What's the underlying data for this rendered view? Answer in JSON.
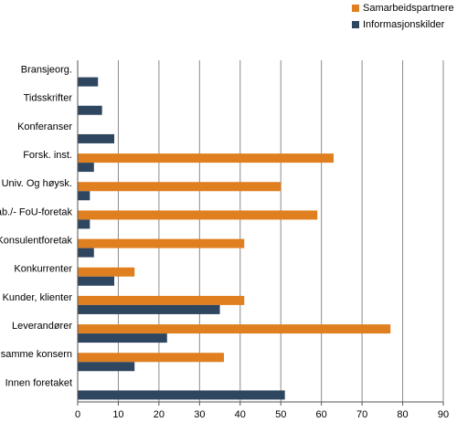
{
  "chart_data": {
    "type": "bar",
    "orientation": "horizontal",
    "title": "",
    "xlabel": "",
    "ylabel": "",
    "xlim": [
      0,
      90
    ],
    "xticks": [
      0,
      10,
      20,
      30,
      40,
      50,
      60,
      70,
      80,
      90
    ],
    "grid": true,
    "legend_position": "top-right",
    "categories": [
      "Bransjeorg.",
      "Tidsskrifter",
      "Konferanser",
      "Forsk. inst.",
      "Univ. Og høysk.",
      "Lab./- FoU-foretak",
      "Konsulentforetak",
      "Konkurrenter",
      "Kunder, klienter",
      "Leverandører",
      "I samme konsern",
      "Innen foretaket"
    ],
    "series": [
      {
        "name": "Samarbeidspartnere",
        "color": "#E07F1F",
        "values": [
          0,
          0,
          0,
          63,
          50,
          59,
          41,
          14,
          41,
          77,
          36,
          0
        ]
      },
      {
        "name": "Informasjonskilder",
        "color": "#2E4660",
        "values": [
          5,
          6,
          9,
          4,
          3,
          3,
          4,
          9,
          35,
          22,
          14,
          51
        ]
      }
    ]
  }
}
